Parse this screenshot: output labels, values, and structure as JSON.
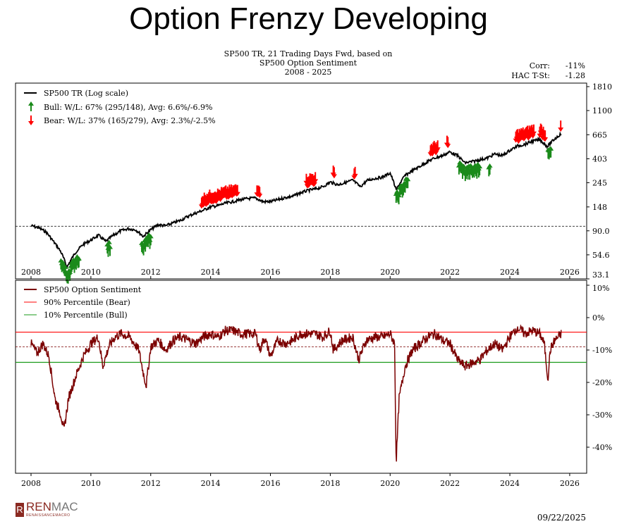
{
  "page": {
    "title": "Option Frenzy Developing",
    "date": "09/22/2025",
    "logo": "RENMAC",
    "logo_sub": "RENAISSANCEMACRO"
  },
  "chart_data": [
    {
      "type": "line",
      "title_lines": [
        "SP500 TR, 21 Trading Days Fwd, based on",
        "SP500 Option Sentiment",
        "2008 - 2025"
      ],
      "stats": {
        "corr_label": "Corr:",
        "corr": "-11%",
        "tstat_label": "HAC T-St:",
        "tstat": "-1.28"
      },
      "yscale": "log",
      "ylim": [
        33.1,
        1810
      ],
      "yticks": [
        "1810",
        "1100",
        "665",
        "403",
        "245",
        "148",
        "90.0",
        "54.6",
        "33.1"
      ],
      "xlim": [
        2007.5,
        2026.5
      ],
      "xticks": [
        "2008",
        "2010",
        "2012",
        "2014",
        "2016",
        "2018",
        "2020",
        "2022",
        "2024",
        "2026"
      ],
      "reference_line": 99,
      "legend": [
        "SP500 TR (Log scale)",
        "Bull:   W/L: 67% (295/148), Avg: 6.6%/-6.9%",
        "Bear:   W/L: 37% (165/279), Avg: 2.3%/-2.5%"
      ],
      "legend_placement": "top-left",
      "colors": {
        "line": "#000000",
        "bull": "#1a8a1a",
        "bear": "#ff0000"
      },
      "series": {
        "x": [
          2008,
          2008.25,
          2008.5,
          2008.75,
          2009,
          2009.2,
          2009.5,
          2009.75,
          2010,
          2010.25,
          2010.5,
          2010.75,
          2011,
          2011.25,
          2011.5,
          2011.75,
          2012,
          2012.25,
          2012.5,
          2012.75,
          2013,
          2013.25,
          2013.5,
          2013.75,
          2014,
          2014.25,
          2014.5,
          2014.75,
          2015,
          2015.25,
          2015.5,
          2015.75,
          2016,
          2016.25,
          2016.5,
          2016.75,
          2017,
          2017.25,
          2017.5,
          2017.75,
          2018,
          2018.25,
          2018.5,
          2018.75,
          2019,
          2019.25,
          2019.5,
          2019.75,
          2020,
          2020.2,
          2020.5,
          2020.75,
          2021,
          2021.25,
          2021.5,
          2021.75,
          2022,
          2022.25,
          2022.5,
          2022.75,
          2023,
          2023.25,
          2023.5,
          2023.75,
          2024,
          2024.25,
          2024.5,
          2024.75,
          2025,
          2025.25,
          2025.5,
          2025.72
        ],
        "y": [
          100,
          96,
          88,
          72,
          58,
          42,
          58,
          68,
          74,
          82,
          72,
          82,
          90,
          94,
          92,
          80,
          92,
          102,
          100,
          106,
          112,
          122,
          130,
          138,
          148,
          152,
          160,
          165,
          172,
          176,
          178,
          165,
          165,
          172,
          180,
          185,
          198,
          208,
          215,
          225,
          248,
          235,
          245,
          258,
          225,
          258,
          268,
          275,
          300,
          210,
          285,
          315,
          345,
          380,
          410,
          430,
          465,
          430,
          370,
          380,
          395,
          410,
          445,
          430,
          480,
          525,
          545,
          580,
          600,
          520,
          610,
          680
        ]
      },
      "bull_signal_periods": [
        [
          2009.0,
          2009.6
        ],
        [
          2010.55,
          2010.65
        ],
        [
          2011.7,
          2012.0
        ],
        [
          2020.2,
          2020.6
        ],
        [
          2022.3,
          2023.0
        ],
        [
          2023.3,
          2023.35
        ],
        [
          2025.28,
          2025.38
        ]
      ],
      "bear_signal_periods": [
        [
          2013.7,
          2014.9
        ],
        [
          2015.55,
          2015.65
        ],
        [
          2017.2,
          2017.5
        ],
        [
          2018.1,
          2018.15
        ],
        [
          2018.8,
          2018.85
        ],
        [
          2021.35,
          2021.6
        ],
        [
          2021.9,
          2021.95
        ],
        [
          2024.2,
          2024.8
        ],
        [
          2025.0,
          2025.2
        ],
        [
          2025.7,
          2025.72
        ]
      ]
    },
    {
      "type": "line",
      "ylim": [
        -46,
        10
      ],
      "yticks": [
        "10%",
        "0%",
        "-10%",
        "-20%",
        "-30%",
        "-40%"
      ],
      "xticks": [
        "2008",
        "2010",
        "2012",
        "2014",
        "2016",
        "2018",
        "2020",
        "2022",
        "2024",
        "2026"
      ],
      "legend": [
        "SP500 Option Sentiment",
        "90% Percentile (Bear)",
        "10% Percentile (Bull)"
      ],
      "legend_placement": "top-left",
      "colors": {
        "sentiment": "#7b0000",
        "bear": "#ff0000",
        "bull": "#1a9a1a"
      },
      "bear_threshold": -4.5,
      "bull_threshold": -13.8,
      "median_line": -9,
      "series": {
        "x": [
          2008,
          2008.2,
          2008.4,
          2008.6,
          2008.8,
          2009,
          2009.1,
          2009.25,
          2009.5,
          2009.75,
          2010,
          2010.25,
          2010.4,
          2010.6,
          2010.8,
          2011,
          2011.3,
          2011.6,
          2011.75,
          2011.85,
          2012,
          2012.25,
          2012.5,
          2012.75,
          2013,
          2013.5,
          2013.75,
          2014,
          2014.25,
          2014.5,
          2014.75,
          2015,
          2015.5,
          2015.65,
          2015.8,
          2016,
          2016.25,
          2016.5,
          2016.75,
          2017,
          2017.5,
          2017.75,
          2018,
          2018.1,
          2018.4,
          2018.75,
          2018.95,
          2019.2,
          2019.5,
          2019.75,
          2020,
          2020.15,
          2020.2,
          2020.3,
          2020.5,
          2020.75,
          2021,
          2021.25,
          2021.5,
          2021.75,
          2022,
          2022.25,
          2022.5,
          2022.75,
          2023,
          2023.25,
          2023.5,
          2023.75,
          2024,
          2024.25,
          2024.5,
          2024.75,
          2025,
          2025.15,
          2025.27,
          2025.35,
          2025.5,
          2025.72
        ],
        "y": [
          -8,
          -11,
          -8,
          -12,
          -25,
          -30,
          -35,
          -25,
          -18,
          -12,
          -8,
          -6,
          -15,
          -9,
          -6,
          -5,
          -6,
          -10,
          -17,
          -21,
          -9,
          -7,
          -10,
          -7,
          -6,
          -8,
          -6,
          -5,
          -6,
          -4,
          -4,
          -5,
          -5,
          -10,
          -6,
          -12,
          -7,
          -8,
          -7,
          -5,
          -5,
          -6,
          -4,
          -10,
          -7,
          -6,
          -13,
          -7,
          -6,
          -6,
          -5,
          -8,
          -45,
          -25,
          -15,
          -10,
          -8,
          -6,
          -5,
          -7,
          -8,
          -13,
          -15,
          -14,
          -13,
          -10,
          -8,
          -10,
          -6,
          -3,
          -5,
          -4,
          -5,
          -8,
          -19,
          -10,
          -7,
          -5
        ]
      }
    }
  ]
}
